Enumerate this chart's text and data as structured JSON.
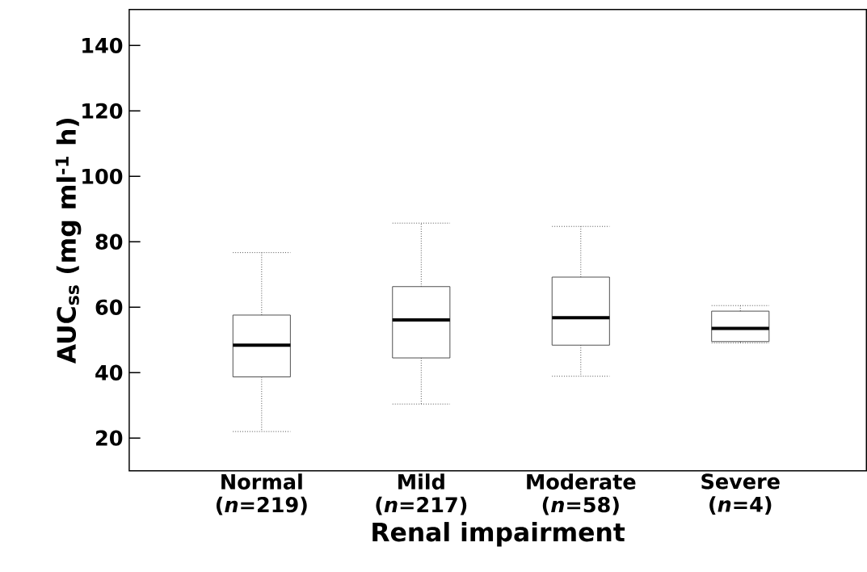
{
  "chart_data": {
    "type": "box",
    "xlabel": "Renal impairment",
    "ylabel": "AUC$_{ss}$ (mg ml$^{-1}$ h)",
    "categories": [
      "Normal (*n*=219)",
      "Mild (*n*=217)",
      "Moderate (*n*=58)",
      "Severe (*n*=4)"
    ],
    "boxes": [
      {
        "low": 22,
        "q1": 38.7,
        "median": 48.4,
        "q3": 57.6,
        "high": 76.7
      },
      {
        "low": 30.4,
        "q1": 44.5,
        "median": 56.1,
        "q3": 66.3,
        "high": 85.7
      },
      {
        "low": 38.9,
        "q1": 48.4,
        "median": 56.8,
        "q3": 69.2,
        "high": 84.7
      },
      {
        "low": 49.1,
        "q1": 49.5,
        "median": 53.5,
        "q3": 58.8,
        "high": 60.5
      }
    ],
    "ylim": [
      10,
      151
    ],
    "yticks": [
      20,
      40,
      60,
      80,
      100,
      120,
      140
    ],
    "grid": false
  }
}
